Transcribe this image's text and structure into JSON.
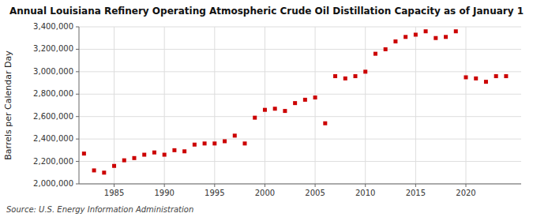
{
  "chart_data": {
    "type": "scatter",
    "title": "Annual Louisiana Refinery Operating Atmospheric Crude Oil Distillation Capacity as of January 1",
    "y_label": "Barrels per Calendar Day",
    "annotations": [
      "Source: U.S. Energy Information Administration"
    ],
    "x": [
      1982,
      1983,
      1984,
      1985,
      1986,
      1987,
      1988,
      1989,
      1990,
      1991,
      1992,
      1993,
      1994,
      1995,
      1996,
      1997,
      1998,
      1999,
      2000,
      2001,
      2002,
      2003,
      2004,
      2005,
      2006,
      2007,
      2008,
      2009,
      2010,
      2011,
      2012,
      2013,
      2014,
      2015,
      2016,
      2017,
      2018,
      2019,
      2020,
      2021,
      2022,
      2023,
      2024
    ],
    "values": [
      2270000,
      2120000,
      2100000,
      2160000,
      2210000,
      2230000,
      2260000,
      2280000,
      2260000,
      2300000,
      2290000,
      2350000,
      2360000,
      2360000,
      2380000,
      2430000,
      2360000,
      2590000,
      2660000,
      2670000,
      2650000,
      2720000,
      2750000,
      2770000,
      2540000,
      2960000,
      2940000,
      2960000,
      3000000,
      3160000,
      3200000,
      3270000,
      3310000,
      3330000,
      3360000,
      3300000,
      3310000,
      3360000,
      2950000,
      2940000,
      2910000,
      2960000,
      2960000
    ],
    "color": "#cc0000",
    "marker": "square",
    "xlim": [
      1981.5,
      2025.5
    ],
    "xticks": [
      1985,
      1990,
      1995,
      2000,
      2005,
      2010,
      2015,
      2020
    ],
    "ylim": [
      2000000,
      3400000
    ],
    "yticks": [
      {
        "value": 2000000,
        "label": "2,000,000"
      },
      {
        "value": 2200000,
        "label": "2,200,000"
      },
      {
        "value": 2400000,
        "label": "2,400,000"
      },
      {
        "value": 2600000,
        "label": "2,600,000"
      },
      {
        "value": 2800000,
        "label": "2,800,000"
      },
      {
        "value": 3000000,
        "label": "3,000,000"
      },
      {
        "value": 3200000,
        "label": "3,200,000"
      },
      {
        "value": 3400000,
        "label": "3,400,000"
      }
    ],
    "grid": true
  }
}
